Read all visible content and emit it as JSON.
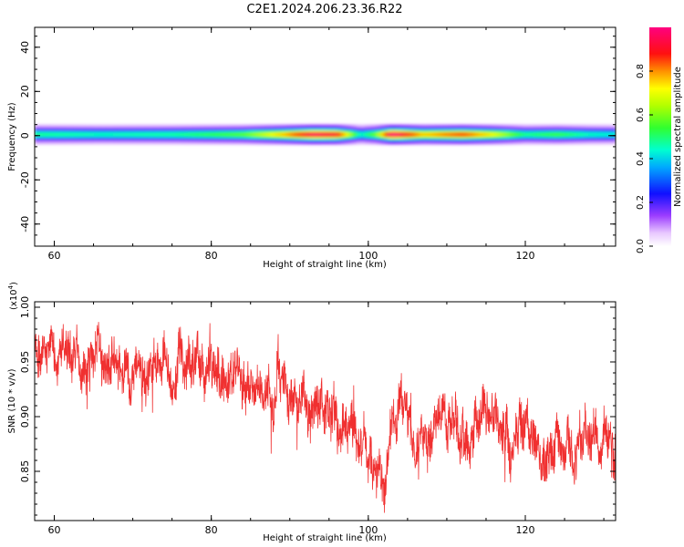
{
  "figure": {
    "title": "C2E1.2024.206.23.36.R22"
  },
  "chart_data": [
    {
      "type": "heatmap",
      "xlabel": "Height of straight line (km)",
      "ylabel": "Frequency (Hz)",
      "xlim": [
        57.5,
        131.5
      ],
      "ylim": [
        -50,
        49
      ],
      "xticks": [
        60,
        80,
        100,
        120
      ],
      "yticks": [
        40,
        20,
        0,
        -20,
        -40
      ],
      "colorbar": {
        "label": "Normalized spectral amplitude",
        "range": [
          0,
          1
        ],
        "ticks": [
          0.0,
          0.2,
          0.4,
          0.6,
          0.8
        ]
      },
      "band": {
        "frequency_center": 0.5,
        "half_width": 2.5
      },
      "intensity_profile": [
        {
          "x": 58,
          "v": 0.45
        },
        {
          "x": 66,
          "v": 0.42
        },
        {
          "x": 75,
          "v": 0.44
        },
        {
          "x": 84,
          "v": 0.52
        },
        {
          "x": 89,
          "v": 0.7
        },
        {
          "x": 93,
          "v": 0.9
        },
        {
          "x": 96,
          "v": 0.85
        },
        {
          "x": 99,
          "v": 0.4
        },
        {
          "x": 101,
          "v": 0.55
        },
        {
          "x": 103,
          "v": 0.95
        },
        {
          "x": 107,
          "v": 0.7
        },
        {
          "x": 112,
          "v": 0.8
        },
        {
          "x": 116,
          "v": 0.65
        },
        {
          "x": 120,
          "v": 0.45
        },
        {
          "x": 124,
          "v": 0.5
        },
        {
          "x": 128,
          "v": 0.42
        },
        {
          "x": 131,
          "v": 0.4
        }
      ]
    },
    {
      "type": "line",
      "xlabel": "Height of straight line (km)",
      "ylabel": "SNR (10 * v/v)",
      "yscale_label": "(x10",
      "yscale_exp": "4",
      "yscale_close": ")",
      "xlim": [
        57.5,
        131.5
      ],
      "ylim": [
        0.805,
        1.005
      ],
      "xticks": [
        60,
        80,
        100,
        120
      ],
      "yticks": [
        1.0,
        0.95,
        0.9,
        0.85
      ],
      "color": "#f03030",
      "series": [
        {
          "trend": [
            {
              "x": 57.5,
              "y": 0.965
            },
            {
              "x": 62,
              "y": 0.96
            },
            {
              "x": 66,
              "y": 0.95
            },
            {
              "x": 70,
              "y": 0.945
            },
            {
              "x": 73,
              "y": 0.935
            },
            {
              "x": 76,
              "y": 0.95
            },
            {
              "x": 80,
              "y": 0.94
            },
            {
              "x": 84,
              "y": 0.925
            },
            {
              "x": 88,
              "y": 0.915
            },
            {
              "x": 92,
              "y": 0.915
            },
            {
              "x": 95,
              "y": 0.905
            },
            {
              "x": 97,
              "y": 0.885
            },
            {
              "x": 99,
              "y": 0.875
            },
            {
              "x": 101,
              "y": 0.855
            },
            {
              "x": 102,
              "y": 0.835
            },
            {
              "x": 103,
              "y": 0.88
            },
            {
              "x": 104,
              "y": 0.935
            },
            {
              "x": 105,
              "y": 0.895
            },
            {
              "x": 106,
              "y": 0.875
            },
            {
              "x": 108,
              "y": 0.89
            },
            {
              "x": 112,
              "y": 0.89
            },
            {
              "x": 116,
              "y": 0.895
            },
            {
              "x": 120,
              "y": 0.885
            },
            {
              "x": 124,
              "y": 0.885
            },
            {
              "x": 128,
              "y": 0.88
            },
            {
              "x": 131.5,
              "y": 0.875
            }
          ],
          "noise_amplitude": 0.03
        }
      ]
    }
  ]
}
